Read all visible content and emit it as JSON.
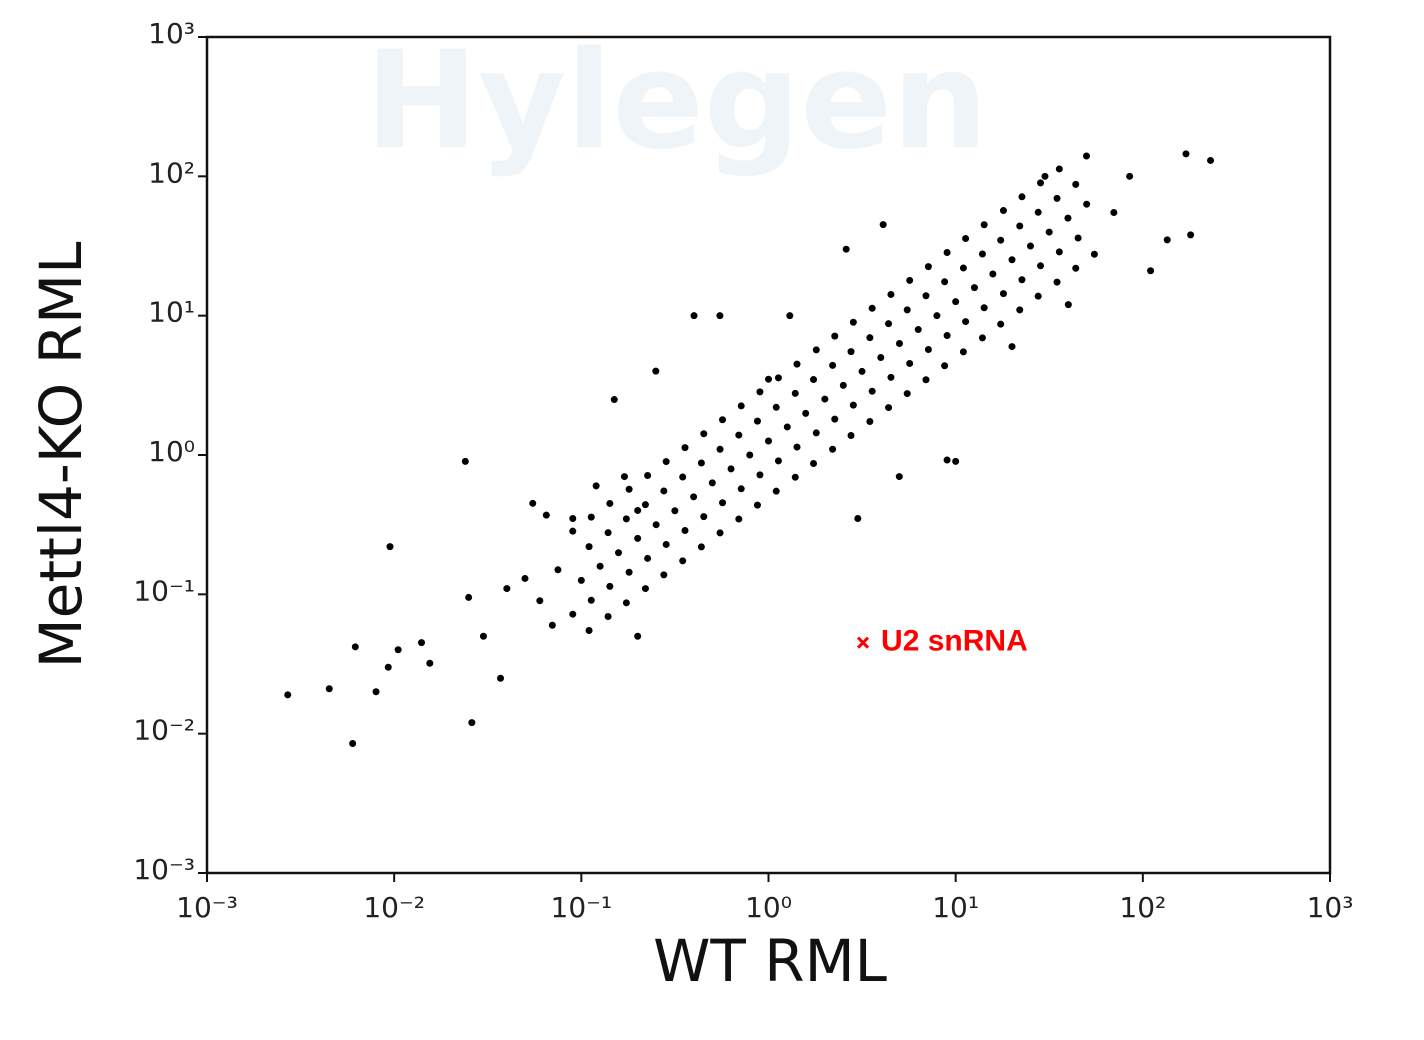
{
  "chart_data": {
    "type": "scatter",
    "xlabel": "WT RML",
    "ylabel": "Mettl4-KO RML",
    "watermark": "Hylegen",
    "xscale": "log",
    "yscale": "log",
    "color": "#000000",
    "xlim": [
      0.001,
      1000
    ],
    "ylim": [
      0.001,
      1000
    ],
    "xticks": [
      {
        "value": 0.001,
        "label": "10⁻³"
      },
      {
        "value": 0.01,
        "label": "10⁻²"
      },
      {
        "value": 0.1,
        "label": "10⁻¹"
      },
      {
        "value": 1,
        "label": "10⁰"
      },
      {
        "value": 10,
        "label": "10¹"
      },
      {
        "value": 100,
        "label": "10²"
      },
      {
        "value": 1000,
        "label": "10³"
      }
    ],
    "yticks": [
      {
        "value": 0.001,
        "label": "10⁻³"
      },
      {
        "value": 0.01,
        "label": "10⁻²"
      },
      {
        "value": 0.1,
        "label": "10⁻¹"
      },
      {
        "value": 1,
        "label": "10⁰"
      },
      {
        "value": 10,
        "label": "10¹"
      },
      {
        "value": 100,
        "label": "10²"
      },
      {
        "value": 1000,
        "label": "10³"
      }
    ],
    "x": [
      0.11,
      0.09,
      0.1,
      0.11,
      0.09,
      0.139,
      0.113,
      0.126,
      0.139,
      0.113,
      0.174,
      0.142,
      0.158,
      0.174,
      0.142,
      0.22,
      0.18,
      0.2,
      0.22,
      0.18,
      0.276,
      0.226,
      0.251,
      0.276,
      0.226,
      0.348,
      0.284,
      0.316,
      0.348,
      0.284,
      0.438,
      0.358,
      0.398,
      0.438,
      0.358,
      0.551,
      0.451,
      0.501,
      0.551,
      0.451,
      0.694,
      0.568,
      0.631,
      0.694,
      0.568,
      0.873,
      0.715,
      0.794,
      0.873,
      0.715,
      1.1,
      0.9,
      1,
      1.1,
      0.9,
      1.39,
      1.13,
      1.26,
      1.39,
      1.13,
      1.74,
      1.42,
      1.58,
      1.74,
      1.42,
      2.2,
      1.8,
      2,
      2.2,
      1.8,
      2.76,
      2.26,
      2.51,
      2.76,
      2.26,
      3.48,
      2.84,
      3.16,
      3.48,
      2.84,
      4.38,
      3.58,
      3.98,
      4.38,
      3.58,
      5.51,
      4.51,
      5.01,
      5.51,
      4.51,
      6.94,
      5.68,
      6.31,
      6.94,
      5.68,
      8.73,
      7.15,
      7.94,
      8.73,
      7.15,
      11,
      9,
      10,
      11,
      9,
      13.9,
      11.3,
      12.6,
      13.9,
      11.3,
      17.4,
      14.2,
      15.8,
      17.4,
      14.2,
      22,
      18,
      20,
      22,
      18,
      27.6,
      22.6,
      25.1,
      27.6,
      22.6,
      34.8,
      28.4,
      31.6,
      34.8,
      28.4,
      43.8,
      35.8,
      39.8,
      43.8,
      35.8,
      55.1,
      45.1,
      50.1,
      0.0027,
      0.0045,
      0.006,
      0.0062,
      0.008,
      0.0095,
      0.0093,
      0.0105,
      0.014,
      0.0155,
      0.024,
      0.026,
      0.025,
      0.03,
      0.037,
      0.04,
      0.05,
      0.055,
      0.06,
      0.07,
      0.075,
      0.2,
      0.12,
      0.15,
      0.25,
      0.4,
      0.55,
      1.3,
      2.6,
      4.1,
      10,
      9,
      50,
      170,
      230,
      180,
      135,
      110,
      85,
      70,
      30,
      0.17,
      0.09,
      0.065,
      0.2,
      1,
      3,
      5,
      20,
      40
    ],
    "values": [
      0.055,
      0.072,
      0.126,
      0.22,
      0.284,
      0.0693,
      0.0907,
      0.159,
      0.277,
      0.358,
      0.0869,
      0.114,
      0.199,
      0.348,
      0.449,
      0.11,
      0.144,
      0.252,
      0.44,
      0.568,
      0.138,
      0.181,
      0.316,
      0.552,
      0.713,
      0.174,
      0.228,
      0.398,
      0.695,
      0.897,
      0.219,
      0.287,
      0.501,
      0.876,
      1.13,
      0.276,
      0.361,
      0.631,
      1.1,
      1.42,
      0.347,
      0.454,
      0.795,
      1.39,
      1.79,
      0.437,
      0.572,
      1,
      1.75,
      2.25,
      0.55,
      0.72,
      1.26,
      2.2,
      2.84,
      0.693,
      0.907,
      1.59,
      2.77,
      3.58,
      0.869,
      1.14,
      1.99,
      3.48,
      4.49,
      1.1,
      1.44,
      2.52,
      4.4,
      5.68,
      1.38,
      1.81,
      3.16,
      5.52,
      7.13,
      1.74,
      2.28,
      3.98,
      6.95,
      8.97,
      2.19,
      2.87,
      5.01,
      8.76,
      11.3,
      2.76,
      3.61,
      6.31,
      11,
      14.2,
      3.47,
      4.54,
      7.95,
      13.9,
      17.9,
      4.37,
      5.72,
      10,
      17.5,
      22.5,
      5.5,
      7.2,
      12.6,
      22,
      28.4,
      6.93,
      9.07,
      15.9,
      27.7,
      35.8,
      8.69,
      11.4,
      19.9,
      34.8,
      44.9,
      11,
      14.4,
      25.2,
      44,
      56.8,
      13.8,
      18.1,
      31.6,
      55.2,
      71.3,
      17.4,
      22.8,
      39.8,
      69.5,
      89.7,
      21.9,
      28.7,
      50.1,
      87.6,
      113,
      27.6,
      36.1,
      63.1,
      0.019,
      0.021,
      0.0085,
      0.042,
      0.02,
      0.22,
      0.03,
      0.04,
      0.045,
      0.032,
      0.9,
      0.012,
      0.095,
      0.05,
      0.025,
      0.11,
      0.13,
      0.45,
      0.09,
      0.06,
      0.15,
      0.05,
      0.6,
      2.5,
      4,
      10,
      10,
      10,
      30,
      45,
      0.9,
      0.92,
      140,
      145,
      130,
      38,
      35,
      21,
      100,
      55,
      100,
      0.7,
      0.35,
      0.37,
      0.4,
      3.5,
      0.35,
      0.7,
      6,
      12
    ],
    "annotations": [
      {
        "text": "U2 snRNA",
        "x": 3.2,
        "y": 0.045,
        "color": "#ff0000"
      }
    ]
  }
}
